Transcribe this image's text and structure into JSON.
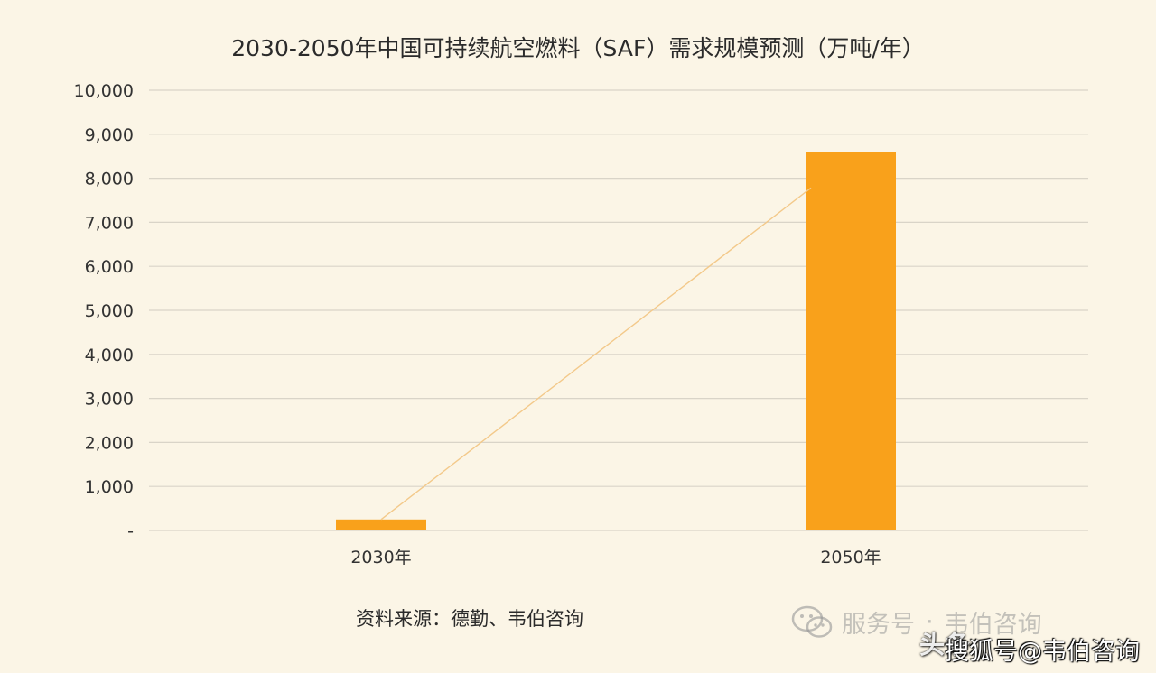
{
  "chart_data": {
    "type": "bar",
    "title": "2030-2050年中国可持续航空燃料（SAF）需求规模预测（万吨/年）",
    "categories": [
      "2030年",
      "2050年"
    ],
    "values": [
      250,
      8600
    ],
    "ylim": [
      0,
      10000
    ],
    "yticks": [
      "-",
      "1,000",
      "2,000",
      "3,000",
      "4,000",
      "5,000",
      "6,000",
      "7,000",
      "8,000",
      "9,000",
      "10,000"
    ],
    "grid": true,
    "trendline": true,
    "colors": {
      "bar": "#f9a11b",
      "trendline": "#f3c98a",
      "grid": "#d9d4c8",
      "background": "#fbf5e6"
    }
  },
  "source_note": "资料来源：德勤、韦伯咨询",
  "watermarks": {
    "wechat_service": "服务号",
    "wechat_separator": "·",
    "wechat_account": "韦伯咨询",
    "toutiao": "头条",
    "sohu": "搜狐号@韦伯咨询",
    "wechat_icon": "wechat-logo-icon"
  }
}
